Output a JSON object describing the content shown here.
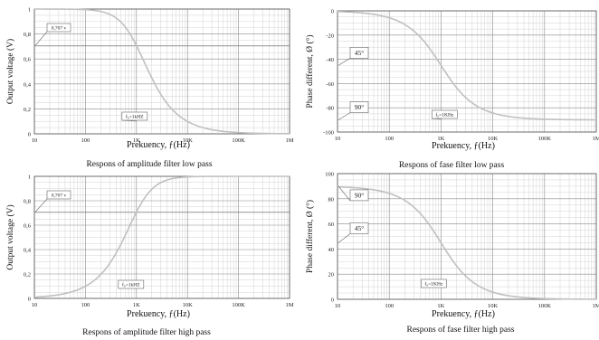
{
  "chart_data": [
    {
      "id": "tl",
      "type": "line",
      "caption": "Respons of amplitude filter low pass",
      "xlabel": "Prekuency, ƒ(Hz)",
      "ylabel": "Output voltage (V)",
      "x_scale": "log",
      "xlim": [
        10,
        1000000
      ],
      "x_ticks": [
        10,
        100,
        1000,
        10000,
        100000,
        1000000
      ],
      "x_tick_labels": [
        "10",
        "100",
        "1K",
        "10K",
        "100K",
        "1M"
      ],
      "ylim": [
        0,
        1
      ],
      "y_ticks": [
        0,
        0.2,
        0.4,
        0.6,
        0.8,
        1
      ],
      "y_tick_labels": [
        "0",
        "0,2",
        "0,4",
        "0,6",
        "0,8",
        "1"
      ],
      "filter": "lowpass",
      "quantity": "amplitude",
      "cutoff_hz": 1000,
      "series": [
        {
          "x": [
            10,
            100,
            300,
            700,
            1000,
            1500,
            3000,
            10000,
            100000,
            1000000
          ],
          "y": [
            1.0,
            0.995,
            0.958,
            0.819,
            0.707,
            0.555,
            0.316,
            0.1,
            0.01,
            0.001
          ]
        }
      ],
      "reference_line_y": 0.707,
      "annotations": [
        {
          "text": "0,707 v",
          "x": 10,
          "y": 0.707
        },
        {
          "text": "f₀=1kHZ",
          "x": 1000,
          "y": 0
        }
      ]
    },
    {
      "id": "tr",
      "type": "line",
      "caption": "Respons of fase filter low pass",
      "xlabel": "Prekuency, ƒ(Hz)",
      "ylabel": "Phase different, Ø (°)",
      "x_scale": "log",
      "xlim": [
        10,
        1000000
      ],
      "x_ticks": [
        10,
        100,
        1000,
        10000,
        100000,
        1000000
      ],
      "x_tick_labels": [
        "10",
        "100",
        "1K",
        "10K",
        "100K",
        "1M"
      ],
      "ylim": [
        -100,
        0
      ],
      "y_ticks": [
        -100,
        -80,
        -60,
        -40,
        -20,
        0
      ],
      "y_tick_labels": [
        "-100",
        "-80",
        "-60",
        "-40",
        "-20",
        "0"
      ],
      "filter": "lowpass",
      "quantity": "phase",
      "cutoff_hz": 1000,
      "series": [
        {
          "x": [
            10,
            100,
            300,
            1000,
            3000,
            10000,
            100000,
            1000000
          ],
          "y": [
            -0.6,
            -5.7,
            -16.7,
            -45,
            -71.6,
            -84.3,
            -89.4,
            -89.9
          ]
        }
      ],
      "annotations": [
        {
          "text": "45°",
          "x": 10,
          "y": -45
        },
        {
          "text": "90°",
          "x": 10,
          "y": -90
        },
        {
          "text": "f₀=1KHz",
          "x": 1000,
          "y": -90
        }
      ]
    },
    {
      "id": "bl",
      "type": "line",
      "caption": "Respons of amplitude filter high pass",
      "xlabel": "Prekuency, ƒ(Hz)",
      "ylabel": "Output voltage (V)",
      "x_scale": "log",
      "xlim": [
        10,
        1000000
      ],
      "x_ticks": [
        10,
        100,
        1000,
        10000,
        100000,
        1000000
      ],
      "x_tick_labels": [
        "10",
        "100",
        "1K",
        "10K",
        "100K",
        "1M"
      ],
      "ylim": [
        0,
        1
      ],
      "y_ticks": [
        0,
        0.2,
        0.4,
        0.6,
        0.8,
        1
      ],
      "y_tick_labels": [
        "0",
        "0,2",
        "0,4",
        "0,6",
        "0,8",
        "1"
      ],
      "filter": "highpass",
      "quantity": "amplitude",
      "cutoff_hz": 1000,
      "series": [
        {
          "x": [
            10,
            100,
            300,
            700,
            1000,
            1500,
            3000,
            10000,
            30000
          ],
          "y": [
            0.01,
            0.1,
            0.287,
            0.573,
            0.707,
            0.832,
            0.949,
            0.995,
            0.999
          ]
        }
      ],
      "reference_line_y": 0.707,
      "annotations": [
        {
          "text": "0,707 v",
          "x": 10,
          "y": 0.707
        },
        {
          "text": "f₀=1kHZ",
          "x": 1000,
          "y": 0
        }
      ]
    },
    {
      "id": "br",
      "type": "line",
      "caption": "Respons of fase filter high pass",
      "xlabel": "Prekuency, ƒ(Hz)",
      "ylabel": "Phase different, Ø (°)",
      "x_scale": "log",
      "xlim": [
        10,
        1000000
      ],
      "x_ticks": [
        10,
        100,
        1000,
        10000,
        100000,
        1000000
      ],
      "x_tick_labels": [
        "10",
        "100",
        "1K",
        "10K",
        "100K",
        "1M"
      ],
      "ylim": [
        0,
        100
      ],
      "y_ticks": [
        0,
        20,
        40,
        60,
        80,
        100
      ],
      "y_tick_labels": [
        "0",
        "20",
        "40",
        "60",
        "80",
        "100"
      ],
      "filter": "highpass",
      "quantity": "phase",
      "cutoff_hz": 1000,
      "series": [
        {
          "x": [
            10,
            100,
            300,
            1000,
            3000,
            10000,
            100000,
            1000000
          ],
          "y": [
            89.4,
            84.3,
            73.3,
            45,
            18.4,
            5.7,
            0.6,
            0.1
          ]
        }
      ],
      "annotations": [
        {
          "text": "90°",
          "x": 10,
          "y": 90
        },
        {
          "text": "45°",
          "x": 10,
          "y": 45
        },
        {
          "text": "f₀=1KHz",
          "x": 1000,
          "y": 0
        }
      ]
    }
  ],
  "colors": {
    "curve": "#c0c0c0",
    "grid_major": "#8a8a8a",
    "grid_minor": "#c8c8c8",
    "text": "#111111"
  }
}
